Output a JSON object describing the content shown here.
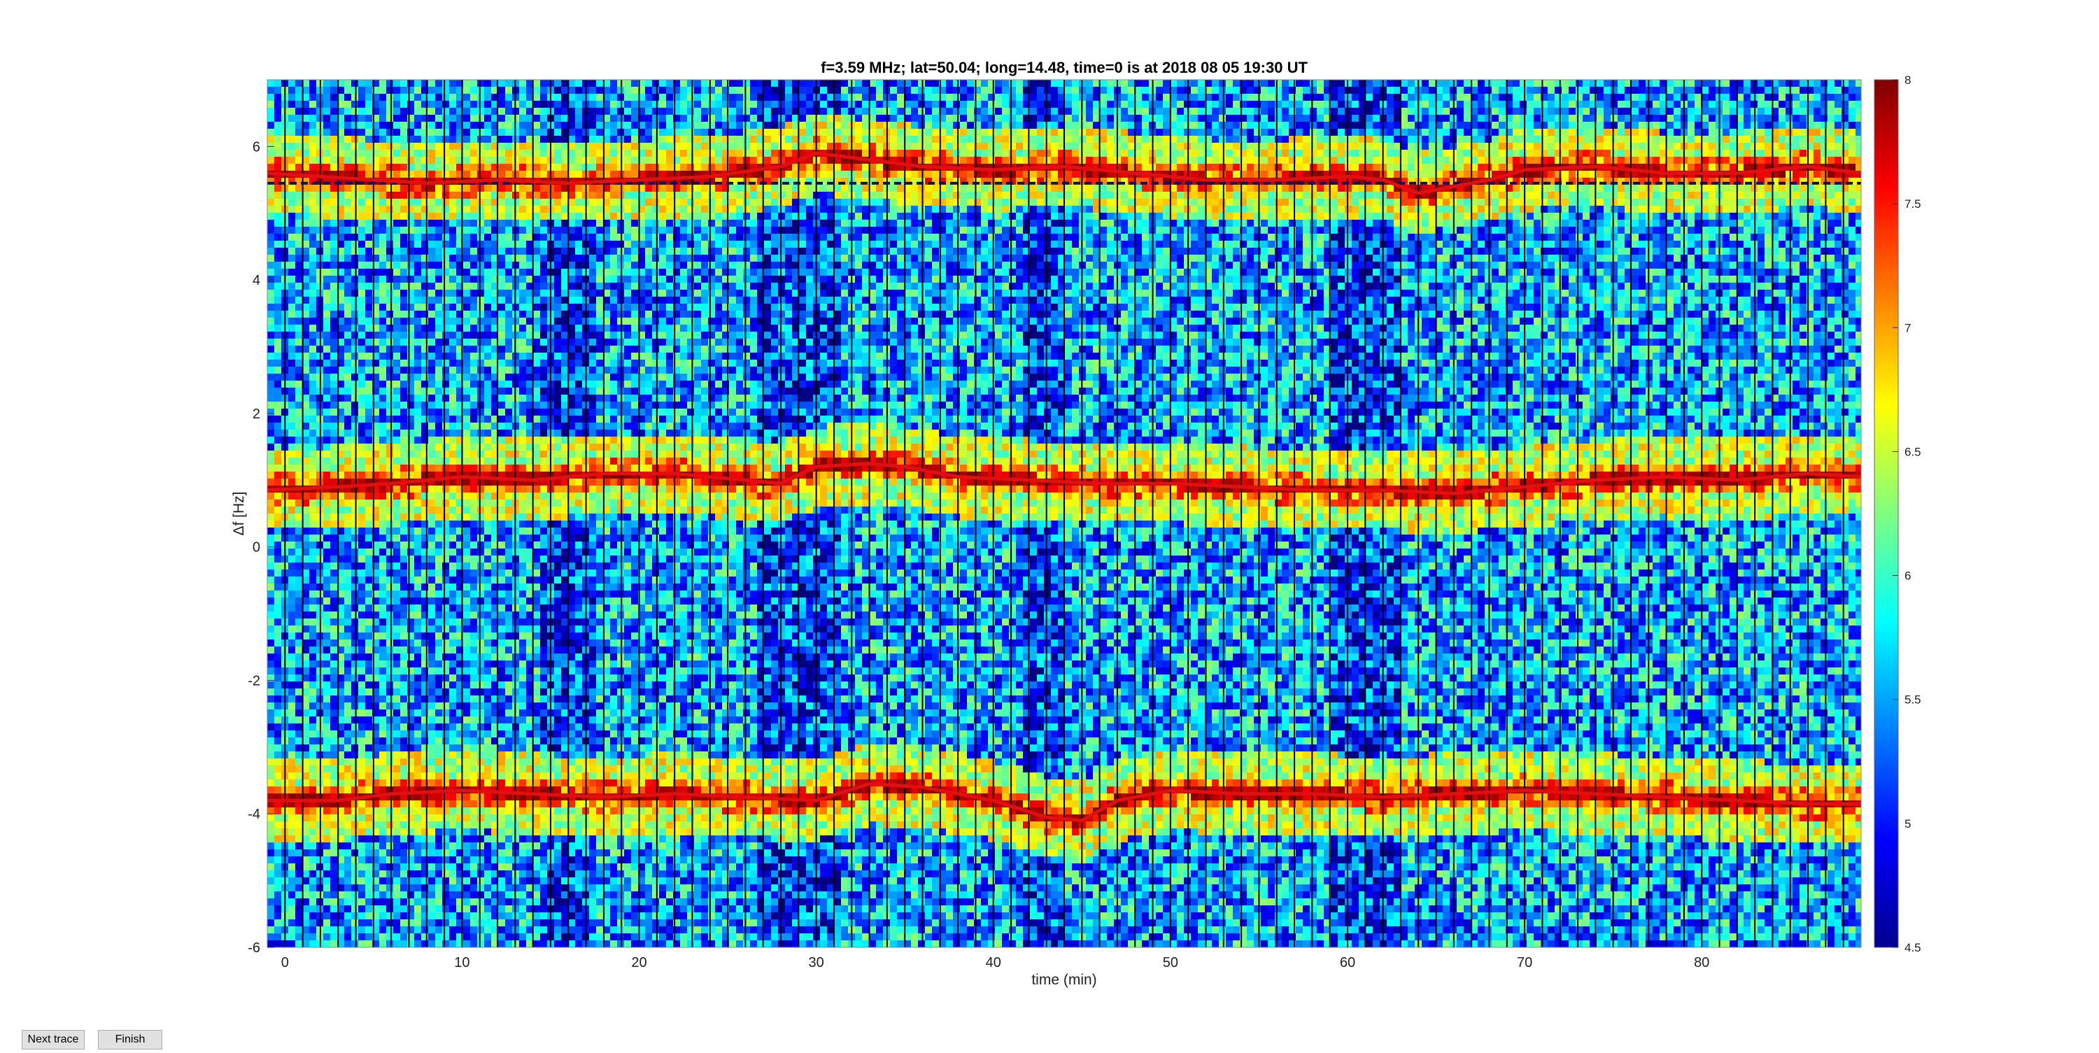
{
  "title": "f=3.59 MHz;  lat=50.04; long=14.48, time=0 is at 2018 08 05 19:30 UT",
  "colors": {
    "jet_low": "#00008f",
    "jet_mid": "#00ffff",
    "jet_high": "#800000",
    "background": "#ffffff",
    "separator": "#000000"
  },
  "chart_data": {
    "type": "heatmap",
    "title": "f=3.59 MHz;  lat=50.04; long=14.48, time=0 is at 2018 08 05 19:30 UT",
    "xlabel": "time (min)",
    "ylabel": "Δf [Hz]",
    "xlim": [
      -1,
      89
    ],
    "ylim": [
      -6,
      7
    ],
    "xticks": [
      0,
      10,
      20,
      30,
      40,
      50,
      60,
      70,
      80
    ],
    "xtick_labels": [
      "0",
      "10",
      "20",
      "30",
      "40",
      "50",
      "60",
      "70",
      "80"
    ],
    "yticks": [
      -6,
      -4,
      -2,
      0,
      2,
      4,
      6
    ],
    "ytick_labels": [
      "-6",
      "-4",
      "-2",
      "0",
      "2",
      "4",
      "6"
    ],
    "colormap": "jet",
    "clim": [
      4.5,
      8
    ],
    "colorbar_ticks": [
      4.5,
      5,
      5.5,
      6,
      6.5,
      7,
      7.5,
      8
    ],
    "colorbar_tick_labels": [
      "4.5",
      "5",
      "5.5",
      "6",
      "6.5",
      "7",
      "7.5",
      "8"
    ],
    "segment_separator_interval_min": 1,
    "traces": [
      {
        "points": [
          [
            -1,
            5.6
          ],
          [
            2,
            5.55
          ],
          [
            5,
            5.5
          ],
          [
            8,
            5.45
          ],
          [
            12,
            5.5
          ],
          [
            16,
            5.45
          ],
          [
            20,
            5.5
          ],
          [
            24,
            5.55
          ],
          [
            28,
            5.7
          ],
          [
            30,
            5.9
          ],
          [
            33,
            5.8
          ],
          [
            36,
            5.7
          ],
          [
            40,
            5.65
          ],
          [
            44,
            5.7
          ],
          [
            48,
            5.6
          ],
          [
            52,
            5.5
          ],
          [
            56,
            5.5
          ],
          [
            60,
            5.55
          ],
          [
            62,
            5.5
          ],
          [
            64,
            5.3
          ],
          [
            66,
            5.4
          ],
          [
            68,
            5.5
          ],
          [
            70,
            5.65
          ],
          [
            74,
            5.7
          ],
          [
            78,
            5.6
          ],
          [
            82,
            5.6
          ],
          [
            86,
            5.7
          ],
          [
            89,
            5.6
          ]
        ]
      },
      {
        "points": [
          [
            -1,
            0.85
          ],
          [
            3,
            0.9
          ],
          [
            6,
            0.95
          ],
          [
            10,
            1.05
          ],
          [
            14,
            1.0
          ],
          [
            18,
            1.1
          ],
          [
            22,
            1.1
          ],
          [
            26,
            1.0
          ],
          [
            28,
            0.95
          ],
          [
            30,
            1.2
          ],
          [
            33,
            1.25
          ],
          [
            35,
            1.2
          ],
          [
            38,
            1.05
          ],
          [
            42,
            1.0
          ],
          [
            46,
            0.95
          ],
          [
            50,
            0.95
          ],
          [
            54,
            0.9
          ],
          [
            58,
            0.85
          ],
          [
            62,
            0.85
          ],
          [
            66,
            0.8
          ],
          [
            70,
            0.9
          ],
          [
            74,
            1.0
          ],
          [
            78,
            1.05
          ],
          [
            82,
            1.0
          ],
          [
            86,
            1.1
          ],
          [
            89,
            1.05
          ]
        ]
      },
      {
        "points": [
          [
            -1,
            -3.8
          ],
          [
            3,
            -3.8
          ],
          [
            6,
            -3.7
          ],
          [
            10,
            -3.65
          ],
          [
            14,
            -3.7
          ],
          [
            18,
            -3.75
          ],
          [
            22,
            -3.7
          ],
          [
            26,
            -3.75
          ],
          [
            30,
            -3.8
          ],
          [
            33,
            -3.55
          ],
          [
            36,
            -3.6
          ],
          [
            40,
            -3.8
          ],
          [
            43,
            -4.05
          ],
          [
            45,
            -4.1
          ],
          [
            47,
            -3.8
          ],
          [
            50,
            -3.65
          ],
          [
            54,
            -3.7
          ],
          [
            58,
            -3.7
          ],
          [
            62,
            -3.75
          ],
          [
            66,
            -3.7
          ],
          [
            70,
            -3.65
          ],
          [
            74,
            -3.7
          ],
          [
            78,
            -3.75
          ],
          [
            82,
            -3.8
          ],
          [
            86,
            -3.85
          ],
          [
            89,
            -3.85
          ]
        ]
      }
    ],
    "reference_line_y": 5.45
  },
  "buttons": {
    "next_trace": "Next trace",
    "finish": "Finish"
  }
}
